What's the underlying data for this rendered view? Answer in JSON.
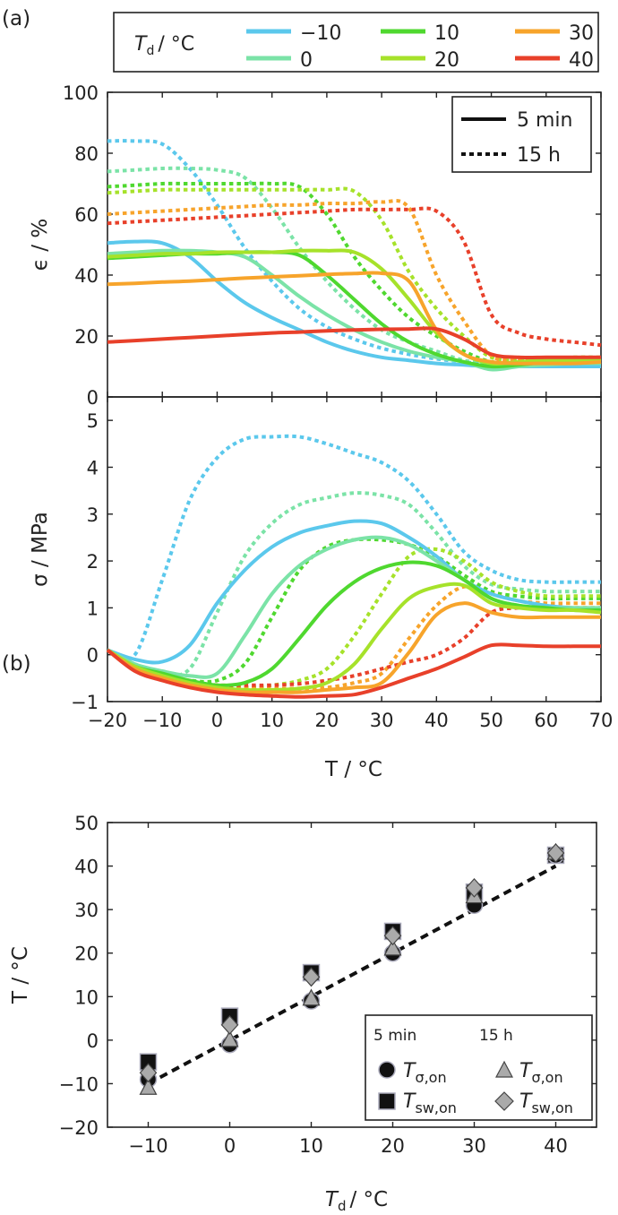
{
  "panel_labels": {
    "a": "(a)",
    "b": "(b)"
  },
  "legend_top": {
    "title": "T",
    "title_sub": "d",
    "title_unit": "/ °C",
    "entries": [
      {
        "label": "−10",
        "color": "#5bc8ec"
      },
      {
        "label": "0",
        "color": "#7be3a7"
      },
      {
        "label": "10",
        "color": "#4fd82f"
      },
      {
        "label": "20",
        "color": "#a6e22a"
      },
      {
        "label": "30",
        "color": "#f7a42b"
      },
      {
        "label": "40",
        "color": "#e8402a"
      }
    ]
  },
  "legend_style": {
    "solid": "5 min",
    "dotted": "15 h"
  },
  "legend_b": {
    "head_5min": "5 min",
    "head_15h": "15 h",
    "sigma_main": "T",
    "sigma_sub": "σ,on",
    "sw_main": "T",
    "sw_sub": "sw,on"
  },
  "chart_data": [
    {
      "type": "line",
      "panel": "a-top",
      "ylabel": "ϵ / %",
      "xlim": [
        -20,
        70
      ],
      "ylim": [
        0,
        100
      ],
      "yticks": [
        "0",
        "20",
        "40",
        "60",
        "80",
        "100"
      ],
      "x": [
        -20,
        -15,
        -10,
        -5,
        0,
        5,
        10,
        15,
        20,
        25,
        30,
        35,
        40,
        45,
        50,
        55,
        60,
        65,
        70
      ],
      "series": [
        {
          "name": "−10",
          "time": "5 min",
          "color": "#5bc8ec",
          "values": [
            50.5,
            51,
            50.5,
            46,
            38,
            31,
            26,
            22,
            18,
            15,
            13,
            12,
            11,
            10.5,
            10,
            10,
            10,
            10,
            10
          ]
        },
        {
          "name": "0",
          "time": "5 min",
          "color": "#7be3a7",
          "values": [
            47,
            47.5,
            48,
            48,
            47.5,
            46,
            40,
            33,
            27,
            22,
            18,
            15,
            13,
            11.5,
            9,
            10,
            10.5,
            11,
            11
          ]
        },
        {
          "name": "10",
          "time": "5 min",
          "color": "#4fd82f",
          "values": [
            45.5,
            46,
            46.5,
            47,
            47,
            47.5,
            47.5,
            46.5,
            40,
            32,
            24,
            18,
            14,
            11.5,
            10,
            10.5,
            11.5,
            12,
            12.5
          ]
        },
        {
          "name": "20",
          "time": "5 min",
          "color": "#a6e22a",
          "values": [
            46,
            46.5,
            47,
            47,
            47.5,
            47.5,
            47.5,
            48,
            48,
            47.5,
            42,
            32,
            21,
            14,
            11,
            11.5,
            12,
            12,
            12
          ]
        },
        {
          "name": "30",
          "time": "5 min",
          "color": "#f7a42b",
          "values": [
            37,
            37.3,
            37.7,
            38,
            38.5,
            39,
            39.4,
            39.8,
            40.2,
            40.5,
            40.6,
            38,
            22,
            14,
            11.5,
            11,
            11,
            11,
            11.5
          ]
        },
        {
          "name": "40",
          "time": "5 min",
          "color": "#e8402a",
          "values": [
            18,
            18.5,
            19,
            19.5,
            20,
            20.5,
            21,
            21.3,
            21.7,
            22,
            22.2,
            22.3,
            22.3,
            19,
            14,
            13,
            13,
            13,
            13
          ]
        },
        {
          "name": "−10",
          "time": "15 h",
          "color": "#5bc8ec",
          "values": [
            84,
            84,
            83,
            75,
            63,
            49,
            38,
            29,
            23,
            19,
            16,
            14,
            12.5,
            11.5,
            10.5,
            10.5,
            10.5,
            11,
            11
          ]
        },
        {
          "name": "0",
          "time": "15 h",
          "color": "#7be3a7",
          "values": [
            74,
            74.5,
            75,
            75,
            74.5,
            72,
            62,
            49,
            38,
            29,
            22,
            18,
            15,
            12,
            11,
            11,
            11.5,
            12,
            12
          ]
        },
        {
          "name": "10",
          "time": "15 h",
          "color": "#4fd82f",
          "values": [
            69,
            69.5,
            70,
            70,
            70,
            70,
            70,
            69,
            60,
            46,
            35,
            26,
            20,
            15,
            11.5,
            11.5,
            12,
            12.5,
            13
          ]
        },
        {
          "name": "20",
          "time": "15 h",
          "color": "#a6e22a",
          "values": [
            67,
            67.5,
            68,
            68,
            68,
            68,
            68,
            68,
            68,
            67.5,
            58,
            41,
            29,
            20,
            13,
            12,
            12.5,
            13,
            13
          ]
        },
        {
          "name": "30",
          "time": "15 h",
          "color": "#f7a42b",
          "values": [
            60,
            60.5,
            61,
            61.5,
            62,
            62.5,
            63,
            63,
            63.5,
            63.5,
            64,
            62,
            40,
            25,
            13.5,
            12,
            12,
            12.5,
            13
          ]
        },
        {
          "name": "40",
          "time": "15 h",
          "color": "#e8402a",
          "values": [
            57,
            57.5,
            58,
            58.5,
            59,
            59.5,
            60,
            60.5,
            61,
            61.5,
            61.5,
            61.5,
            61,
            51,
            27,
            21,
            19,
            18,
            17
          ]
        }
      ]
    },
    {
      "type": "line",
      "panel": "a-bottom",
      "xlabel": "T / °C",
      "ylabel": "σ / MPa",
      "xlim": [
        -20,
        70
      ],
      "ylim": [
        -1,
        5.5
      ],
      "xticks": [
        "−20",
        "−10",
        "0",
        "10",
        "20",
        "30",
        "40",
        "50",
        "60",
        "70"
      ],
      "yticks": [
        "−1",
        "0",
        "1",
        "2",
        "3",
        "4",
        "5"
      ],
      "x": [
        -20,
        -15,
        -10,
        -5,
        0,
        5,
        10,
        15,
        20,
        25,
        30,
        35,
        40,
        45,
        50,
        55,
        60,
        65,
        70
      ],
      "series": [
        {
          "name": "−10",
          "time": "5 min",
          "color": "#5bc8ec",
          "values": [
            0.1,
            -0.1,
            -0.15,
            0.2,
            1.1,
            1.8,
            2.3,
            2.6,
            2.75,
            2.85,
            2.8,
            2.5,
            2.1,
            1.6,
            1.3,
            1.15,
            1.05,
            1.0,
            1.0
          ]
        },
        {
          "name": "0",
          "time": "5 min",
          "color": "#7be3a7",
          "values": [
            0.1,
            -0.2,
            -0.35,
            -0.45,
            -0.4,
            0.4,
            1.3,
            1.9,
            2.25,
            2.45,
            2.5,
            2.35,
            2.0,
            1.6,
            1.2,
            1.05,
            1.0,
            1.0,
            1.0
          ]
        },
        {
          "name": "10",
          "time": "5 min",
          "color": "#4fd82f",
          "values": [
            0.1,
            -0.25,
            -0.4,
            -0.55,
            -0.65,
            -0.6,
            -0.3,
            0.35,
            1.05,
            1.55,
            1.85,
            1.97,
            1.9,
            1.6,
            1.2,
            1.05,
            1.0,
            0.95,
            0.95
          ]
        },
        {
          "name": "20",
          "time": "5 min",
          "color": "#a6e22a",
          "values": [
            0.1,
            -0.25,
            -0.45,
            -0.6,
            -0.7,
            -0.75,
            -0.75,
            -0.72,
            -0.6,
            -0.2,
            0.55,
            1.2,
            1.45,
            1.48,
            1.1,
            1.0,
            0.95,
            0.95,
            0.9
          ]
        },
        {
          "name": "30",
          "time": "5 min",
          "color": "#f7a42b",
          "values": [
            0.1,
            -0.3,
            -0.5,
            -0.65,
            -0.75,
            -0.8,
            -0.8,
            -0.8,
            -0.75,
            -0.7,
            -0.6,
            0.05,
            0.85,
            1.1,
            0.9,
            0.8,
            0.8,
            0.8,
            0.8
          ]
        },
        {
          "name": "40",
          "time": "5 min",
          "color": "#e8402a",
          "values": [
            0.1,
            -0.35,
            -0.55,
            -0.7,
            -0.8,
            -0.85,
            -0.88,
            -0.9,
            -0.88,
            -0.85,
            -0.7,
            -0.5,
            -0.3,
            -0.05,
            0.2,
            0.2,
            0.18,
            0.18,
            0.18
          ]
        },
        {
          "name": "−10",
          "time": "15 h",
          "color": "#5bc8ec",
          "values": [
            0.1,
            0.0,
            1.6,
            3.3,
            4.2,
            4.6,
            4.65,
            4.65,
            4.5,
            4.3,
            4.1,
            3.7,
            3.0,
            2.2,
            1.8,
            1.6,
            1.55,
            1.55,
            1.55
          ]
        },
        {
          "name": "0",
          "time": "15 h",
          "color": "#7be3a7",
          "values": [
            0.1,
            -0.2,
            -0.4,
            -0.3,
            0.9,
            2.1,
            2.8,
            3.2,
            3.35,
            3.45,
            3.4,
            3.2,
            2.6,
            1.9,
            1.5,
            1.4,
            1.35,
            1.35,
            1.35
          ]
        },
        {
          "name": "10",
          "time": "15 h",
          "color": "#4fd82f",
          "values": [
            0.1,
            -0.25,
            -0.45,
            -0.55,
            -0.55,
            -0.2,
            0.8,
            1.8,
            2.3,
            2.45,
            2.45,
            2.35,
            2.1,
            1.7,
            1.35,
            1.25,
            1.2,
            1.2,
            1.2
          ]
        },
        {
          "name": "20",
          "time": "15 h",
          "color": "#a6e22a",
          "values": [
            0.1,
            -0.25,
            -0.5,
            -0.6,
            -0.65,
            -0.7,
            -0.65,
            -0.55,
            -0.3,
            0.4,
            1.3,
            2.1,
            2.25,
            2.0,
            1.55,
            1.35,
            1.25,
            1.25,
            1.25
          ]
        },
        {
          "name": "30",
          "time": "15 h",
          "color": "#f7a42b",
          "values": [
            0.1,
            -0.3,
            -0.5,
            -0.6,
            -0.65,
            -0.7,
            -0.72,
            -0.72,
            -0.7,
            -0.6,
            -0.4,
            0.35,
            1.05,
            1.45,
            1.3,
            1.15,
            1.1,
            1.1,
            1.1
          ]
        },
        {
          "name": "40",
          "time": "15 h",
          "color": "#e8402a",
          "values": [
            0.1,
            -0.3,
            -0.5,
            -0.6,
            -0.65,
            -0.65,
            -0.65,
            -0.62,
            -0.55,
            -0.45,
            -0.3,
            -0.15,
            0.0,
            0.35,
            0.9,
            1.0,
            1.0,
            1.0,
            1.0
          ]
        }
      ]
    },
    {
      "type": "scatter",
      "panel": "b",
      "xlabel": "T / °C",
      "xlabel_main": "T",
      "xlabel_sub": "d",
      "xlabel_unit": "/ °C",
      "ylabel": "T / °C",
      "xlim": [
        -15,
        45
      ],
      "ylim": [
        -20,
        50
      ],
      "xticks": [
        "−10",
        "0",
        "10",
        "20",
        "30",
        "40"
      ],
      "yticks": [
        "−20",
        "−10",
        "0",
        "10",
        "20",
        "30",
        "40",
        "50"
      ],
      "fit_line": {
        "x": [
          -10,
          40
        ],
        "y": [
          -10,
          40
        ],
        "style": "dashed"
      },
      "series": [
        {
          "name": "T σ,on (5 min)",
          "marker": "circle-filled",
          "x": [
            -10,
            0,
            10,
            20,
            30,
            40
          ],
          "y": [
            -9,
            -1,
            9,
            20,
            31,
            42.5
          ]
        },
        {
          "name": "T sw,on (5 min)",
          "marker": "square-filled",
          "x": [
            -10,
            0,
            10,
            20,
            30,
            40
          ],
          "y": [
            -5,
            5.5,
            15.5,
            25,
            34,
            42.5
          ]
        },
        {
          "name": "T σ,on (15 h)",
          "marker": "triangle-gray",
          "x": [
            -10,
            0,
            10,
            20,
            30,
            40
          ],
          "y": [
            -11,
            0,
            9.5,
            21,
            33,
            43
          ]
        },
        {
          "name": "T sw,on (15 h)",
          "marker": "diamond-gray",
          "x": [
            -10,
            0,
            10,
            20,
            30,
            40
          ],
          "y": [
            -7.5,
            3.5,
            14.5,
            24,
            35,
            43
          ]
        }
      ]
    }
  ]
}
